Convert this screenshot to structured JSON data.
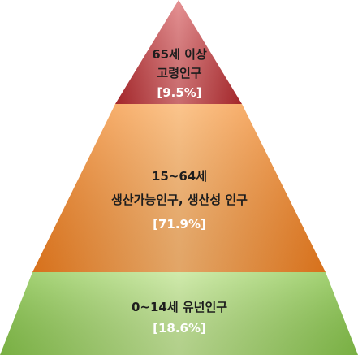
{
  "pyramid": {
    "tiers": [
      {
        "id": "elderly",
        "line1": "65세 이상",
        "line2": "고령인구",
        "percent": "[9.5%]",
        "share": 9.5,
        "color_light": "#e07a7c",
        "color_dark": "#b52a2e",
        "text_color": "#1d1d1d",
        "percent_color": "#ffffff"
      },
      {
        "id": "working-age",
        "line1": "15~64세",
        "line2": "생산가능인구, 생산성 인구",
        "percent": "[71.9%]",
        "share": 71.9,
        "color_light": "#fbb873",
        "color_dark": "#ef7d1e",
        "text_color": "#1d1d1d",
        "percent_color": "#ffffff"
      },
      {
        "id": "youth",
        "line1": "0~14세 유년인구",
        "line2": "",
        "percent": "[18.6%]",
        "share": 18.6,
        "color_light": "#c6e79a",
        "color_dark": "#86c34a",
        "text_color": "#1d1d1d",
        "percent_color": "#ffffff"
      }
    ]
  }
}
